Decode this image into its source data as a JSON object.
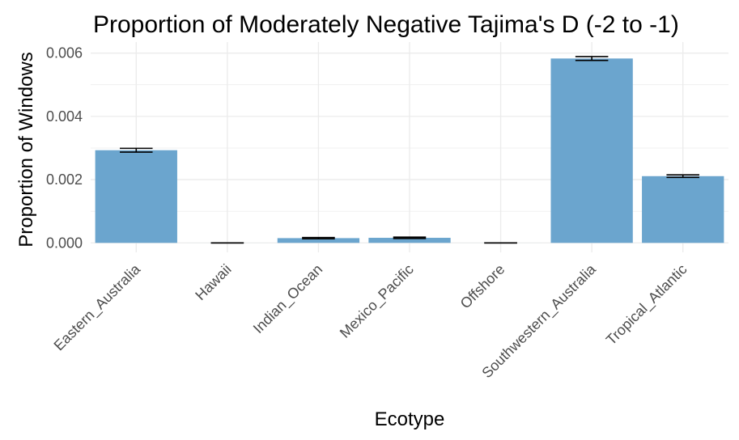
{
  "chart_data": {
    "type": "bar",
    "title": "Proportion of Moderately Negative Tajima's D (-2 to -1)",
    "xlabel": "Ecotype",
    "ylabel": "Proportion of Windows",
    "categories": [
      "Eastern_Australia",
      "Hawaii",
      "Indian_Ocean",
      "Mexico_Pacific",
      "Offshore",
      "Southwestern_Australia",
      "Tropical_Atlantic"
    ],
    "values": [
      0.00293,
      0.0,
      0.00015,
      0.00016,
      0.0,
      0.00583,
      0.00211
    ],
    "error_low": [
      0.00287,
      0.0,
      0.00013,
      0.00014,
      0.0,
      0.00577,
      0.00207
    ],
    "error_high": [
      0.00299,
      0.0,
      0.00017,
      0.00018,
      0.0,
      0.00589,
      0.00215
    ],
    "y_ticks": [
      "0.000",
      "0.002",
      "0.004",
      "0.006"
    ],
    "y_tick_values": [
      0,
      0.002,
      0.004,
      0.006
    ],
    "ylim": [
      -0.0003,
      0.00635
    ],
    "grid": true,
    "legend": "none",
    "bar_color": "#6BA5CE",
    "error_bar_color": "#000000",
    "grid_color": "#EBEBEB"
  }
}
